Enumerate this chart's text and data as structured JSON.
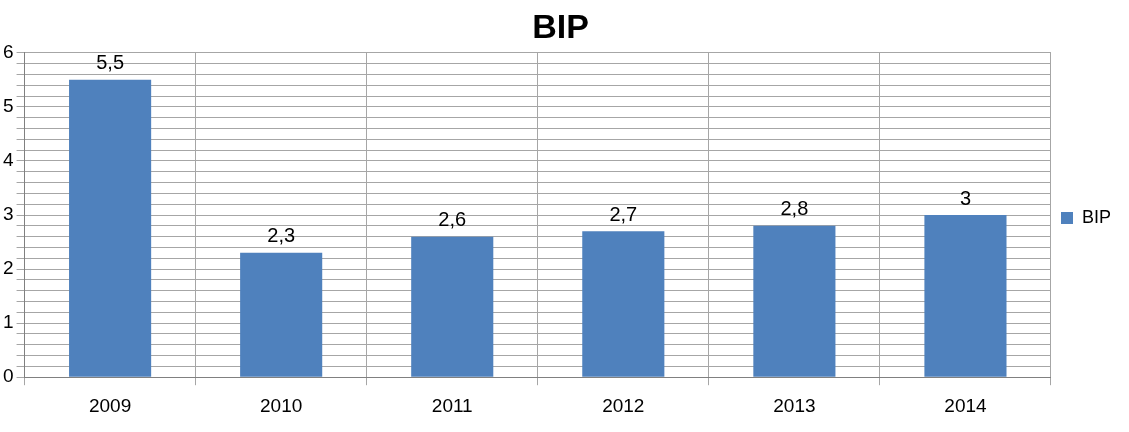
{
  "chart_data": {
    "type": "bar",
    "title": "BIP",
    "categories": [
      "2009",
      "2010",
      "2011",
      "2012",
      "2013",
      "2014"
    ],
    "series": [
      {
        "name": "BIP",
        "color": "#4f81bd",
        "values": [
          5.5,
          2.3,
          2.6,
          2.7,
          2.8,
          3
        ],
        "value_labels": [
          "5,5",
          "2,3",
          "2,6",
          "2,7",
          "2,8",
          "3"
        ]
      }
    ],
    "ylim": [
      0,
      6
    ],
    "yticks": [
      0,
      {
        "value": 0.2,
        "label": null
      },
      {
        "value": 0.4,
        "label": null
      },
      {
        "value": 0.6,
        "label": null
      },
      {
        "value": 0.8,
        "label": null
      },
      1,
      {
        "value": 1.2,
        "label": null
      },
      {
        "value": 1.4,
        "label": null
      },
      {
        "value": 1.6,
        "label": null
      },
      {
        "value": 1.8,
        "label": null
      },
      2,
      {
        "value": 2.2,
        "label": null
      },
      {
        "value": 2.4,
        "label": null
      },
      {
        "value": 2.6,
        "label": null
      },
      {
        "value": 2.8,
        "label": null
      },
      3,
      {
        "value": 3.2,
        "label": null
      },
      {
        "value": 3.4,
        "label": null
      },
      {
        "value": 3.6,
        "label": null
      },
      {
        "value": 3.8,
        "label": null
      },
      4,
      {
        "value": 4.2,
        "label": null
      },
      {
        "value": 4.4,
        "label": null
      },
      {
        "value": 4.6,
        "label": null
      },
      {
        "value": 4.8,
        "label": null
      },
      5,
      {
        "value": 5.2,
        "label": null
      },
      {
        "value": 5.4,
        "label": null
      },
      {
        "value": 5.6,
        "label": null
      },
      {
        "value": 5.8,
        "label": null
      },
      6
    ],
    "grid": true,
    "legend": "right"
  }
}
